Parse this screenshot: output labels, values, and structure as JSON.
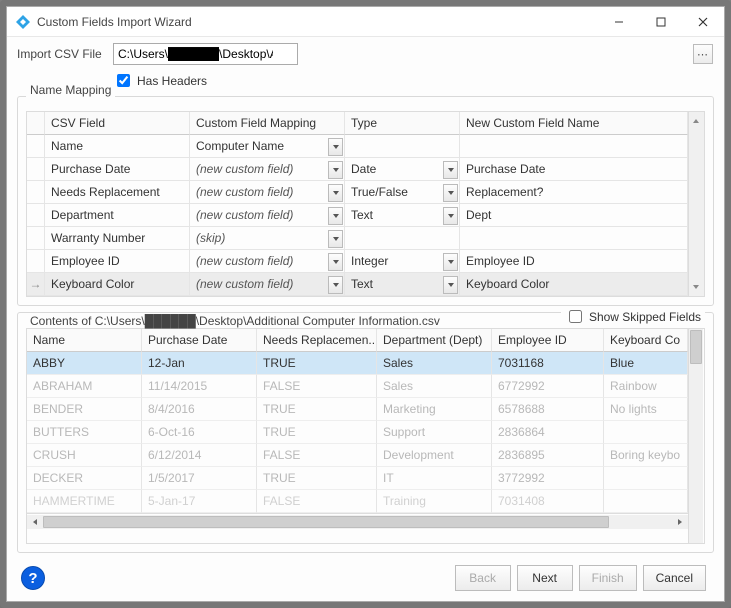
{
  "window": {
    "title": "Custom Fields Import Wizard"
  },
  "import": {
    "label": "Import CSV File",
    "path": "C:\\Users\\██████\\Desktop\\Additional Computer Information.csv",
    "has_headers_label": "Has Headers",
    "has_headers_checked": true
  },
  "mapping": {
    "group_title": "Name Mapping",
    "columns": {
      "csv": "CSV Field",
      "map": "Custom Field Mapping",
      "type": "Type",
      "name": "New Custom Field Name"
    },
    "rows": [
      {
        "csv": "Name",
        "map": "Computer Name",
        "map_italic": false,
        "type": "",
        "name": "",
        "selected": false,
        "marker": ""
      },
      {
        "csv": "Purchase Date",
        "map": "(new custom field)",
        "map_italic": true,
        "type": "Date",
        "name": "Purchase Date",
        "selected": false,
        "marker": ""
      },
      {
        "csv": "Needs Replacement",
        "map": "(new custom field)",
        "map_italic": true,
        "type": "True/False",
        "name": "Replacement?",
        "selected": false,
        "marker": ""
      },
      {
        "csv": "Department",
        "map": "(new custom field)",
        "map_italic": true,
        "type": "Text",
        "name": "Dept",
        "selected": false,
        "marker": ""
      },
      {
        "csv": "Warranty Number",
        "map": "(skip)",
        "map_italic": true,
        "type": "",
        "name": "",
        "selected": false,
        "marker": ""
      },
      {
        "csv": "Employee ID",
        "map": "(new custom field)",
        "map_italic": true,
        "type": "Integer",
        "name": "Employee ID",
        "selected": false,
        "marker": ""
      },
      {
        "csv": "Keyboard Color",
        "map": "(new custom field)",
        "map_italic": true,
        "type": "Text",
        "name": "Keyboard Color",
        "selected": true,
        "marker": "→"
      }
    ]
  },
  "preview": {
    "title": "Contents of C:\\Users\\██████\\Desktop\\Additional Computer Information.csv",
    "show_skipped_label": "Show Skipped Fields",
    "show_skipped_checked": false,
    "columns": [
      "Name",
      "Purchase Date",
      "Needs Replacemen...",
      "Department (Dept)",
      "Employee ID",
      "Keyboard Co"
    ],
    "rows": [
      {
        "cells": [
          "ABBY",
          "12-Jan",
          "TRUE",
          "Sales",
          "7031168",
          "Blue"
        ],
        "selected": true,
        "dim": false
      },
      {
        "cells": [
          "ABRAHAM",
          "11/14/2015",
          "FALSE",
          "Sales",
          "6772992",
          "Rainbow"
        ],
        "selected": false,
        "dim": true
      },
      {
        "cells": [
          "BENDER",
          "8/4/2016",
          "TRUE",
          "Marketing",
          "6578688",
          "No lights"
        ],
        "selected": false,
        "dim": true
      },
      {
        "cells": [
          "BUTTERS",
          "6-Oct-16",
          "TRUE",
          "Support",
          "2836864",
          ""
        ],
        "selected": false,
        "dim": true
      },
      {
        "cells": [
          "CRUSH",
          "6/12/2014",
          "FALSE",
          "Development",
          "2836895",
          "Boring keybo"
        ],
        "selected": false,
        "dim": true
      },
      {
        "cells": [
          "DECKER",
          "1/5/2017",
          "TRUE",
          "IT",
          "3772992",
          ""
        ],
        "selected": false,
        "dim": true
      },
      {
        "cells": [
          "HAMMERTIME",
          "5-Jan-17",
          "FALSE",
          "Training",
          "7031408",
          ""
        ],
        "selected": false,
        "dim": true,
        "trunc": true
      }
    ]
  },
  "buttons": {
    "back": "Back",
    "next": "Next",
    "finish": "Finish",
    "cancel": "Cancel"
  },
  "colors": {
    "selection": "#cfe6f7",
    "grid_border": "#dcdcdc",
    "window_bg": "#fdfdfd"
  }
}
